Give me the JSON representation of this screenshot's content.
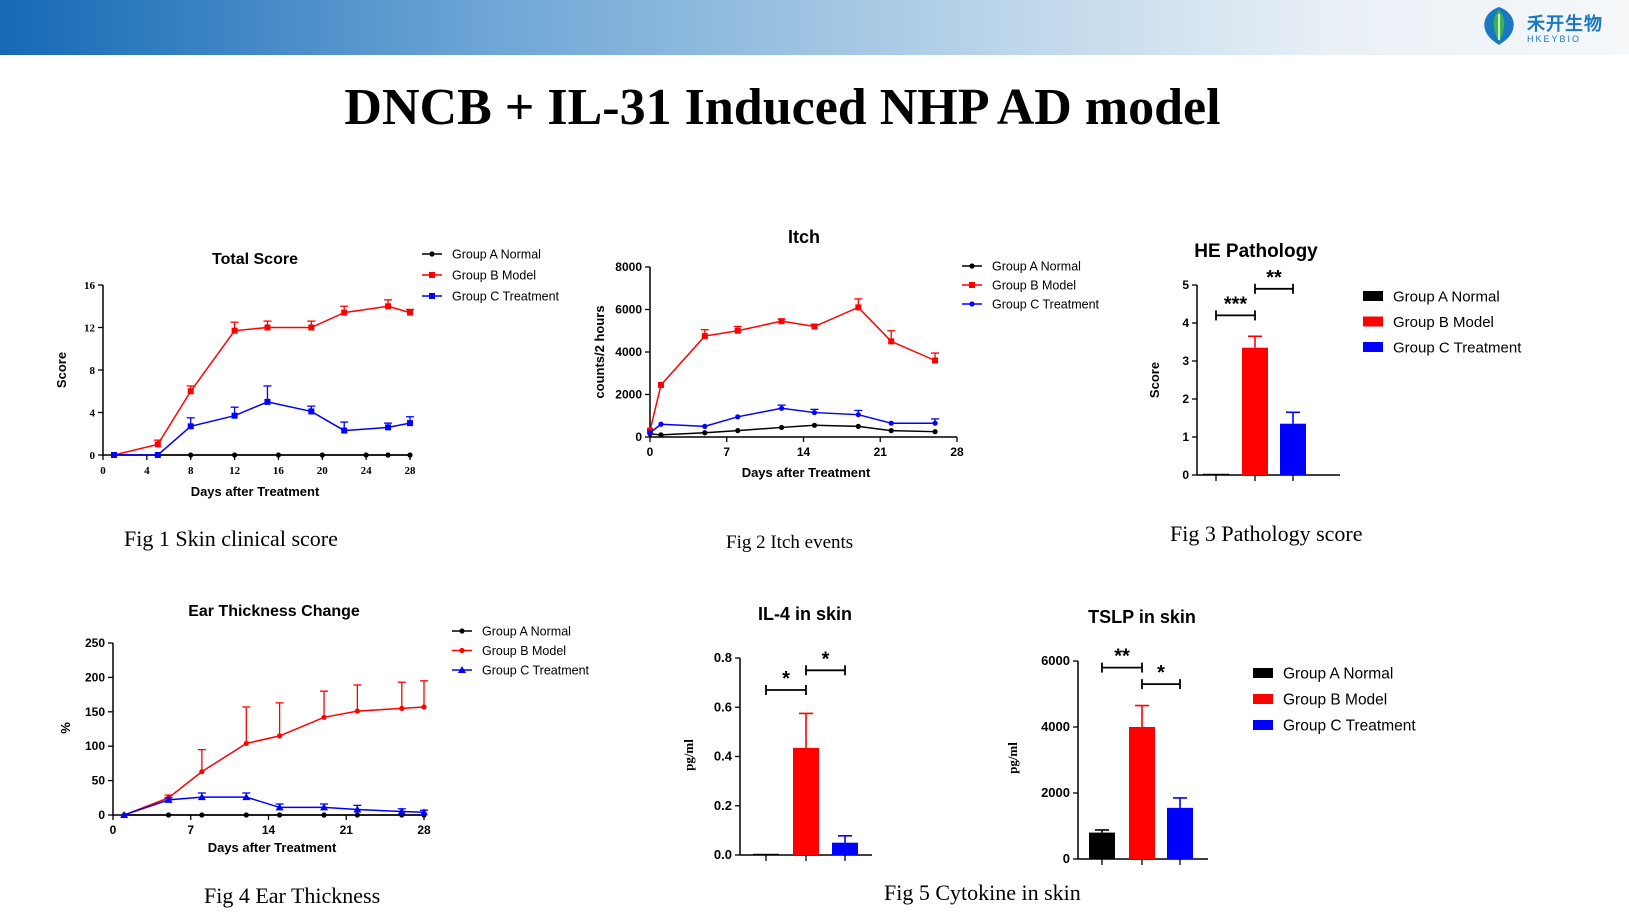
{
  "header": {
    "logo_cn": "禾开生物",
    "logo_en": "HKEYBIO"
  },
  "title": "DNCB + IL-31 Induced NHP AD model",
  "colors": {
    "normal": "#000000",
    "model": "#ff0000",
    "treatment": "#0000ff"
  },
  "captions": {
    "fig1": "Fig 1 Skin clinical score",
    "fig2": "Fig 2 Itch events",
    "fig3": "Fig 3 Pathology score",
    "fig4": "Fig 4 Ear Thickness",
    "fig5": "Fig 5 Cytokine in skin"
  },
  "chart_data": [
    {
      "id": "total-score",
      "type": "line",
      "title": "Total Score",
      "xlabel": "Days after Treatment",
      "ylabel": "Score",
      "xlim": [
        0,
        28
      ],
      "ylim": [
        0,
        16
      ],
      "xticks": [
        0,
        4,
        8,
        12,
        16,
        20,
        24,
        28
      ],
      "yticks": [
        0,
        4,
        8,
        12,
        16
      ],
      "series": [
        {
          "name": "Group A Normal",
          "color": "#000000",
          "marker": "dot",
          "x": [
            1,
            5,
            8,
            12,
            16,
            20,
            24,
            26,
            28
          ],
          "y": [
            0,
            0,
            0,
            0,
            0,
            0,
            0,
            0,
            0
          ],
          "err": [
            0,
            0,
            0,
            0,
            0,
            0,
            0,
            0,
            0
          ]
        },
        {
          "name": "Group B Model",
          "color": "#ff0000",
          "marker": "square",
          "x": [
            1,
            5,
            8,
            12,
            15,
            19,
            22,
            26,
            28
          ],
          "y": [
            0,
            1,
            6,
            11.7,
            12,
            12,
            13.4,
            14,
            13.4
          ],
          "err": [
            0,
            0.4,
            0.5,
            0.8,
            0.6,
            0.6,
            0.6,
            0.6,
            0.3
          ]
        },
        {
          "name": "Group C Treatment",
          "color": "#0000ff",
          "marker": "square",
          "x": [
            1,
            5,
            8,
            12,
            15,
            19,
            22,
            26,
            28
          ],
          "y": [
            0,
            0,
            2.7,
            3.7,
            5,
            4.1,
            2.3,
            2.6,
            3
          ],
          "err": [
            0,
            0,
            0.8,
            0.8,
            1.5,
            0.5,
            0.8,
            0.4,
            0.6
          ]
        }
      ]
    },
    {
      "id": "itch",
      "type": "line",
      "title": "Itch",
      "xlabel": "Days after Treatment",
      "ylabel": "counts/2 hours",
      "xlim": [
        0,
        28
      ],
      "ylim": [
        0,
        8000
      ],
      "xticks": [
        0,
        7,
        14,
        21,
        28
      ],
      "yticks": [
        0,
        2000,
        4000,
        6000,
        8000
      ],
      "series": [
        {
          "name": "Group A Normal",
          "color": "#000000",
          "marker": "dot",
          "x": [
            0,
            1,
            5,
            8,
            12,
            15,
            19,
            22,
            26
          ],
          "y": [
            150,
            100,
            200,
            300,
            450,
            550,
            500,
            300,
            250
          ],
          "err": [
            0,
            0,
            0,
            0,
            0,
            0,
            0,
            0,
            0
          ]
        },
        {
          "name": "Group B Model",
          "color": "#ff0000",
          "marker": "square",
          "x": [
            0,
            1,
            5,
            8,
            12,
            15,
            19,
            22,
            26
          ],
          "y": [
            300,
            2450,
            4750,
            5000,
            5450,
            5200,
            6100,
            4500,
            3600
          ],
          "err": [
            0,
            0,
            300,
            200,
            100,
            100,
            400,
            500,
            350
          ]
        },
        {
          "name": "Group C Treatment",
          "color": "#0000ff",
          "marker": "dot",
          "x": [
            0,
            1,
            5,
            8,
            12,
            15,
            19,
            22,
            26
          ],
          "y": [
            200,
            600,
            500,
            950,
            1350,
            1150,
            1050,
            650,
            650
          ],
          "err": [
            0,
            0,
            0,
            0,
            150,
            150,
            200,
            0,
            200
          ]
        }
      ]
    },
    {
      "id": "he-pathology",
      "type": "bar",
      "title": "HE Pathology",
      "xlabel": "",
      "ylabel": "Score",
      "ylim": [
        0,
        5
      ],
      "yticks": [
        0,
        1,
        2,
        3,
        4,
        5
      ],
      "categories": [
        "Group A Normal",
        "Group B Model",
        "Group C Treatment"
      ],
      "values": [
        0,
        3.35,
        1.35
      ],
      "errors": [
        0,
        0.3,
        0.3
      ],
      "colors": [
        "#000000",
        "#ff0000",
        "#0000ff"
      ],
      "significance": [
        {
          "from": 0,
          "to": 1,
          "label": "***",
          "y": 4.2
        },
        {
          "from": 1,
          "to": 2,
          "label": "**",
          "y": 4.9
        }
      ]
    },
    {
      "id": "ear-thickness",
      "type": "line",
      "title": "Ear Thickness Change",
      "xlabel": "Days after Treatment",
      "ylabel": "%",
      "xlim": [
        0,
        28
      ],
      "ylim": [
        0,
        250
      ],
      "xticks": [
        0,
        7,
        14,
        21,
        28
      ],
      "yticks": [
        0,
        50,
        100,
        150,
        200,
        250
      ],
      "series": [
        {
          "name": "Group A Normal",
          "color": "#000000",
          "marker": "dot",
          "x": [
            1,
            5,
            8,
            12,
            15,
            19,
            22,
            26,
            28
          ],
          "y": [
            0,
            0,
            0,
            0,
            0,
            0,
            0,
            0,
            0
          ],
          "err": [
            0,
            0,
            0,
            0,
            0,
            0,
            0,
            0,
            0
          ]
        },
        {
          "name": "Group B Model",
          "color": "#ff0000",
          "marker": "dot",
          "x": [
            1,
            5,
            8,
            12,
            15,
            19,
            22,
            26,
            28
          ],
          "y": [
            0,
            25,
            63,
            104,
            115,
            142,
            151,
            155,
            157
          ],
          "err": [
            0,
            4,
            32,
            53,
            48,
            38,
            38,
            38,
            38
          ]
        },
        {
          "name": "Group C Treatment",
          "color": "#0000ff",
          "marker": "triangle",
          "x": [
            1,
            5,
            8,
            12,
            15,
            19,
            22,
            26,
            28
          ],
          "y": [
            0,
            22,
            26,
            26,
            11,
            11,
            8,
            5,
            4
          ],
          "err": [
            0,
            3,
            6,
            6,
            5,
            5,
            6,
            4,
            3
          ]
        }
      ]
    },
    {
      "id": "il4",
      "type": "bar",
      "title": "IL-4 in skin",
      "xlabel": "",
      "ylabel": "pg/ml",
      "ylim": [
        0,
        0.8
      ],
      "yticks": [
        0,
        0.2,
        0.4,
        0.6,
        0.8
      ],
      "yticklabels": [
        "0.0",
        "0.2",
        "0.4",
        "0.6",
        "0.8"
      ],
      "categories": [
        "Group A Normal",
        "Group B Model",
        "Group C Treatment"
      ],
      "values": [
        0.003,
        0.435,
        0.05
      ],
      "errors": [
        0,
        0.14,
        0.028
      ],
      "colors": [
        "#000000",
        "#ff0000",
        "#0000ff"
      ],
      "significance": [
        {
          "from": 0,
          "to": 1,
          "label": "*",
          "y": 0.67
        },
        {
          "from": 1,
          "to": 2,
          "label": "*",
          "y": 0.75
        }
      ]
    },
    {
      "id": "tslp",
      "type": "bar",
      "title": "TSLP in skin",
      "xlabel": "",
      "ylabel": "pg/ml",
      "ylim": [
        0,
        6000
      ],
      "yticks": [
        0,
        2000,
        4000,
        6000
      ],
      "categories": [
        "Group A Normal",
        "Group B Model",
        "Group C Treatment"
      ],
      "values": [
        800,
        4000,
        1550
      ],
      "errors": [
        80,
        650,
        300
      ],
      "colors": [
        "#000000",
        "#ff0000",
        "#0000ff"
      ],
      "significance": [
        {
          "from": 0,
          "to": 1,
          "label": "**",
          "y": 5800
        },
        {
          "from": 1,
          "to": 2,
          "label": "*",
          "y": 5300
        }
      ]
    }
  ]
}
